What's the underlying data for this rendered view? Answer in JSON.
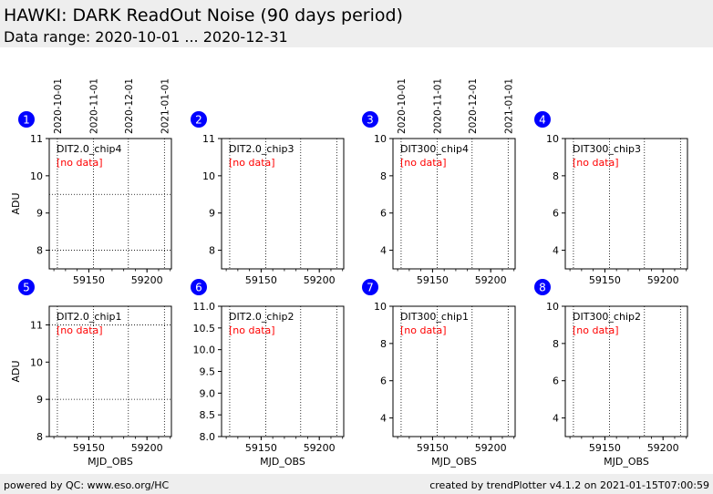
{
  "header": {
    "title": "HAWKI: DARK ReadOut Noise (90 days period)",
    "subtitle": "Data range: 2020-10-01 ... 2020-12-31"
  },
  "footer": {
    "left": "powered by QC: www.eso.org/HC",
    "right": "created by trendPlotter v4.1.2 on 2021-01-15T07:00:59"
  },
  "colors": {
    "badge": "#0000ff",
    "no_data": "#ff0000",
    "band": "#eeeeee"
  },
  "chart_data": [
    {
      "id": "1",
      "type": "scatter",
      "label": "DIT2.0_chip4",
      "note": "[no data]",
      "ylabel": "ADU",
      "xlabel": "",
      "ylim": [
        7.5,
        11
      ],
      "yticks": [
        8,
        9,
        10,
        11
      ],
      "ytick_labels": [
        "8",
        "9",
        "10",
        "11"
      ],
      "hlines": [
        8,
        9.5
      ],
      "date_labels": [
        "2020-10-01",
        "2020-11-01",
        "2020-12-01",
        "2021-01-01"
      ]
    },
    {
      "id": "2",
      "type": "scatter",
      "label": "DIT2.0_chip3",
      "note": "[no data]",
      "ylabel": "",
      "xlabel": "",
      "ylim": [
        7.5,
        11
      ],
      "yticks": [
        8,
        9,
        10,
        11
      ],
      "ytick_labels": [
        "8",
        "9",
        "10",
        "11"
      ],
      "hlines": [],
      "date_labels": []
    },
    {
      "id": "3",
      "type": "scatter",
      "label": "DIT300_chip4",
      "note": "[no data]",
      "ylabel": "",
      "xlabel": "",
      "ylim": [
        3,
        10
      ],
      "yticks": [
        4,
        6,
        8,
        10
      ],
      "ytick_labels": [
        "4",
        "6",
        "8",
        "10"
      ],
      "hlines": [],
      "date_labels": [
        "2020-10-01",
        "2020-11-01",
        "2020-12-01",
        "2021-01-01"
      ]
    },
    {
      "id": "4",
      "type": "scatter",
      "label": "DIT300_chip3",
      "note": "[no data]",
      "ylabel": "",
      "xlabel": "",
      "ylim": [
        3,
        10
      ],
      "yticks": [
        4,
        6,
        8,
        10
      ],
      "ytick_labels": [
        "4",
        "6",
        "8",
        "10"
      ],
      "hlines": [],
      "date_labels": []
    },
    {
      "id": "5",
      "type": "scatter",
      "label": "DIT2.0_chip1",
      "note": "[no data]",
      "ylabel": "ADU",
      "xlabel": "MJD_OBS",
      "ylim": [
        8,
        11.5
      ],
      "yticks": [
        8,
        9,
        10,
        11
      ],
      "ytick_labels": [
        "8",
        "9",
        "10",
        "11"
      ],
      "hlines": [
        9,
        11
      ],
      "date_labels": []
    },
    {
      "id": "6",
      "type": "scatter",
      "label": "DIT2.0_chip2",
      "note": "[no data]",
      "ylabel": "",
      "xlabel": "MJD_OBS",
      "ylim": [
        8,
        11
      ],
      "yticks": [
        8,
        8.5,
        9,
        9.5,
        10,
        10.5,
        11
      ],
      "ytick_labels": [
        "8.0",
        "8.5",
        "9.0",
        "9.5",
        "10.0",
        "10.5",
        "11.0"
      ],
      "hlines": [],
      "date_labels": []
    },
    {
      "id": "7",
      "type": "scatter",
      "label": "DIT300_chip1",
      "note": "[no data]",
      "ylabel": "",
      "xlabel": "MJD_OBS",
      "ylim": [
        3,
        10
      ],
      "yticks": [
        4,
        6,
        8,
        10
      ],
      "ytick_labels": [
        "4",
        "6",
        "8",
        "10"
      ],
      "hlines": [],
      "date_labels": []
    },
    {
      "id": "8",
      "type": "scatter",
      "label": "DIT300_chip2",
      "note": "[no data]",
      "ylabel": "",
      "xlabel": "MJD_OBS",
      "ylim": [
        3,
        10
      ],
      "yticks": [
        4,
        6,
        8,
        10
      ],
      "ytick_labels": [
        "4",
        "6",
        "8",
        "10"
      ],
      "hlines": [],
      "date_labels": []
    }
  ],
  "x_axis": {
    "xlim": [
      59116,
      59221
    ],
    "xticks": [
      59150,
      59200
    ],
    "xtick_labels": [
      "59150",
      "59200"
    ],
    "minor_step": 10,
    "date_lines": [
      59123,
      59154,
      59184,
      59215
    ]
  }
}
